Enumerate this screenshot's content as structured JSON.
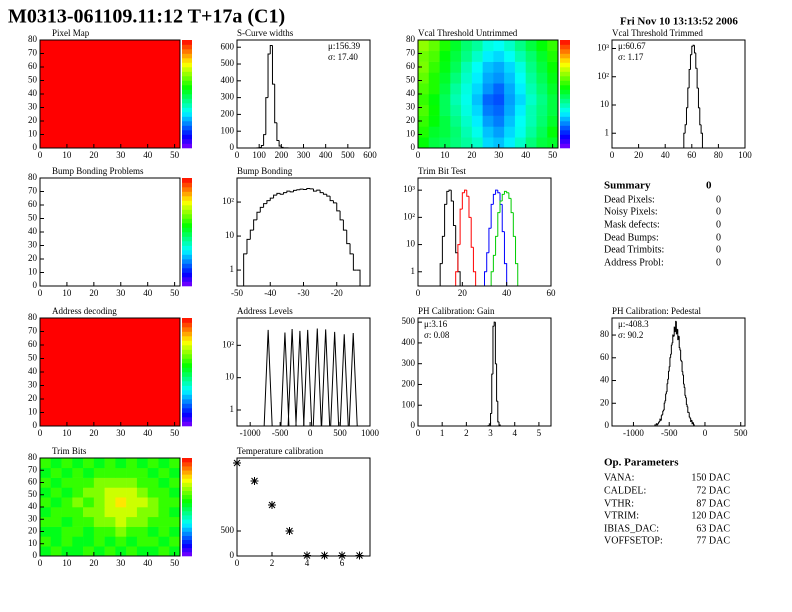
{
  "header": {
    "title": "M0313-061109.11:12 T+17a (C1)",
    "date": "Fri Nov 10 13:13:52 2006"
  },
  "chart_data": [
    {
      "type": "heatmap",
      "title": "Pixel Map",
      "xlim": [
        0,
        52
      ],
      "ylim": [
        0,
        80
      ],
      "xticks": [
        0,
        10,
        20,
        30,
        40,
        50
      ],
      "yticks": [
        0,
        10,
        20,
        30,
        40,
        50,
        60,
        70,
        80
      ],
      "zlim": [
        0,
        10
      ],
      "z": [
        [
          10,
          10
        ],
        [
          10,
          10
        ]
      ]
    },
    {
      "type": "hist",
      "title": "S-Curve widths",
      "stats": [
        "μ:156.39",
        "σ: 17.40"
      ],
      "color": "#000000",
      "xlim": [
        0,
        600
      ],
      "ylim": [
        0,
        643
      ],
      "xticks": [
        0,
        100,
        200,
        300,
        400,
        500,
        600
      ],
      "yticks": [
        0,
        100,
        200,
        300,
        400,
        500,
        600
      ],
      "bins": [
        90,
        100,
        110,
        120,
        130,
        140,
        150,
        160,
        170,
        180,
        190,
        200,
        210,
        220,
        230
      ],
      "counts": [
        1,
        3,
        15,
        80,
        300,
        560,
        610,
        380,
        150,
        45,
        12,
        4,
        1,
        1
      ]
    },
    {
      "type": "heatmap",
      "title": "Vcal Threshold Untrimmed",
      "xlim": [
        0,
        52
      ],
      "ylim": [
        0,
        80
      ],
      "xticks": [
        0,
        10,
        20,
        30,
        40,
        50
      ],
      "yticks": [
        0,
        10,
        20,
        30,
        40,
        50,
        60,
        70,
        80
      ],
      "zlim": [
        0,
        100
      ],
      "z": [
        [
          55,
          50,
          48,
          45,
          42,
          38,
          30,
          28,
          32,
          38,
          45,
          50,
          52
        ],
        [
          58,
          52,
          50,
          46,
          40,
          35,
          28,
          25,
          30,
          35,
          42,
          48,
          55
        ],
        [
          60,
          55,
          50,
          44,
          38,
          32,
          25,
          22,
          28,
          34,
          40,
          46,
          52
        ],
        [
          62,
          56,
          48,
          42,
          36,
          30,
          22,
          20,
          26,
          32,
          40,
          45,
          50
        ],
        [
          60,
          55,
          48,
          40,
          35,
          28,
          20,
          18,
          25,
          30,
          38,
          44,
          50
        ],
        [
          62,
          58,
          50,
          42,
          36,
          30,
          24,
          20,
          26,
          32,
          40,
          46,
          52
        ],
        [
          64,
          58,
          52,
          45,
          38,
          32,
          26,
          24,
          28,
          34,
          42,
          48,
          54
        ],
        [
          66,
          60,
          54,
          48,
          40,
          34,
          28,
          26,
          30,
          36,
          44,
          50,
          56
        ],
        [
          65,
          62,
          55,
          50,
          44,
          38,
          32,
          30,
          34,
          40,
          46,
          52,
          58
        ],
        [
          68,
          64,
          58,
          52,
          46,
          42,
          36,
          34,
          38,
          44,
          50,
          55,
          60
        ]
      ]
    },
    {
      "type": "hist",
      "title": "Vcal Threshold Trimmed",
      "stats": [
        "μ:60.67",
        "σ: 1.17"
      ],
      "color": "#000000",
      "log_y": true,
      "xlim": [
        0,
        100
      ],
      "ylim": [
        0.3,
        2000
      ],
      "xticks": [
        0,
        20,
        40,
        60,
        80,
        100
      ],
      "yticks": [
        1,
        10,
        {
          "value": 100,
          "label": "10²"
        },
        {
          "value": 1000,
          "label": "10³"
        }
      ],
      "bins": [
        54,
        55,
        56,
        57,
        58,
        59,
        60,
        61,
        62,
        63,
        64,
        65,
        66,
        67,
        68
      ],
      "counts": [
        1,
        2,
        8,
        40,
        180,
        600,
        1200,
        1300,
        700,
        200,
        40,
        8,
        2,
        1
      ]
    },
    {
      "type": "heatmap",
      "title": "Bump Bonding Problems",
      "xlim": [
        0,
        52
      ],
      "ylim": [
        0,
        80
      ],
      "xticks": [
        0,
        10,
        20,
        30,
        40,
        50
      ],
      "yticks": [
        0,
        10,
        20,
        30,
        40,
        50,
        60,
        70,
        80
      ],
      "zlim": [
        0,
        10
      ],
      "z": []
    },
    {
      "type": "hist",
      "title": "Bump Bonding",
      "color": "#000000",
      "log_y": true,
      "xlim": [
        -50,
        -10
      ],
      "ylim": [
        0.34,
        510
      ],
      "xticks": [
        -50,
        -40,
        -30,
        -20
      ],
      "yticks": [
        1,
        10,
        {
          "value": 100,
          "label": "10²"
        }
      ],
      "bins": [
        -48,
        -47,
        -46,
        -45,
        -44,
        -43,
        -42,
        -41,
        -40,
        -39,
        -38,
        -37,
        -36,
        -35,
        -34,
        -33,
        -32,
        -31,
        -30,
        -29,
        -28,
        -27,
        -26,
        -25,
        -24,
        -23,
        -22,
        -21,
        -20,
        -19,
        -18,
        -17,
        -16,
        -15,
        -14,
        -13
      ],
      "counts": [
        3,
        8,
        15,
        30,
        50,
        70,
        90,
        110,
        130,
        160,
        180,
        170,
        190,
        210,
        200,
        220,
        230,
        240,
        235,
        250,
        245,
        210,
        225,
        190,
        170,
        150,
        110,
        95,
        55,
        30,
        15,
        6,
        3,
        1,
        1
      ]
    },
    {
      "type": "hist",
      "title": "Trim Bit Test",
      "log_y": true,
      "xlim": [
        0,
        60
      ],
      "ylim": [
        0.3,
        2800
      ],
      "xticks": [
        0,
        20,
        40,
        60
      ],
      "yticks": [
        1,
        10,
        {
          "value": 100,
          "label": "10²"
        },
        {
          "value": 1000,
          "label": "10³"
        }
      ],
      "series": [
        {
          "color": "#000000",
          "bins": [
            10,
            11,
            12,
            13,
            14,
            15,
            16,
            17,
            18,
            19
          ],
          "counts": [
            2,
            20,
            300,
            900,
            1000,
            400,
            50,
            5,
            1
          ]
        },
        {
          "color": "#ff0000",
          "bins": [
            17,
            18,
            19,
            20,
            21,
            22,
            23,
            24,
            25,
            26
          ],
          "counts": [
            1,
            10,
            200,
            800,
            1000,
            600,
            100,
            8,
            1
          ]
        },
        {
          "color": "#0000ff",
          "bins": [
            30,
            31,
            32,
            33,
            34,
            35,
            36,
            37,
            38,
            39,
            40
          ],
          "counts": [
            1,
            5,
            40,
            300,
            700,
            1000,
            800,
            300,
            30,
            2
          ]
        },
        {
          "color": "#00cc00",
          "bins": [
            33,
            34,
            35,
            36,
            37,
            38,
            39,
            40,
            41,
            42,
            43,
            44,
            45
          ],
          "counts": [
            1,
            4,
            20,
            150,
            400,
            700,
            900,
            800,
            500,
            150,
            20,
            2
          ]
        }
      ]
    },
    {
      "type": "heatmap",
      "title": "Address decoding",
      "xlim": [
        0,
        52
      ],
      "ylim": [
        0,
        80
      ],
      "xticks": [
        0,
        10,
        20,
        30,
        40,
        50
      ],
      "yticks": [
        0,
        10,
        20,
        30,
        40,
        50,
        60,
        70,
        80
      ],
      "zlim": [
        0,
        10
      ],
      "z": [
        [
          10,
          10
        ],
        [
          10,
          10
        ]
      ]
    },
    {
      "type": "spikes",
      "title": "Address Levels",
      "color": "#000000",
      "log_y": true,
      "xlim": [
        -1220,
        1000
      ],
      "ylim": [
        0.32,
        700
      ],
      "xticks": [
        -1000,
        -500,
        0,
        500,
        1000
      ],
      "yticks": [
        1,
        10,
        {
          "value": 100,
          "label": "10²"
        }
      ],
      "x": [
        -700,
        -420,
        -300,
        -170,
        -40,
        120,
        260,
        410,
        570,
        720
      ],
      "values": [
        300,
        250,
        320,
        280,
        300,
        330,
        310,
        260,
        220,
        240
      ]
    },
    {
      "type": "hist",
      "title": "PH Calibration: Gain",
      "stats": [
        "μ:3.16",
        "σ: 0.08"
      ],
      "color": "#000000",
      "xlim": [
        0,
        5.5
      ],
      "ylim": [
        0,
        520
      ],
      "xticks": [
        0,
        1,
        2,
        3,
        4,
        5
      ],
      "yticks": [
        0,
        100,
        200,
        300,
        400,
        500
      ],
      "bins": [
        2.9,
        2.95,
        3,
        3.05,
        3.1,
        3.15,
        3.2,
        3.25,
        3.3,
        3.35,
        3.4
      ],
      "counts": [
        2,
        10,
        60,
        250,
        480,
        500,
        300,
        120,
        20,
        5
      ]
    },
    {
      "type": "hist",
      "title": "PH Calibration: Pedestal",
      "stats": [
        "μ:-408.3",
        "σ: 90.2"
      ],
      "color": "#000000",
      "xlim": [
        -1300,
        560
      ],
      "ylim": [
        0,
        95
      ],
      "xticks": [
        -1000,
        -500,
        0,
        500
      ],
      "yticks": [
        0,
        20,
        40,
        60,
        80
      ],
      "bins": [
        -700,
        -690,
        -680,
        -670,
        -660,
        -650,
        -640,
        -630,
        -620,
        -610,
        -600,
        -590,
        -580,
        -570,
        -560,
        -550,
        -540,
        -530,
        -520,
        -510,
        -500,
        -490,
        -480,
        -470,
        -460,
        -450,
        -440,
        -430,
        -420,
        -410,
        -400,
        -390,
        -380,
        -370,
        -360,
        -350,
        -340,
        -330,
        -320,
        -310,
        -300,
        -290,
        -280,
        -270,
        -260,
        -250,
        -240,
        -230,
        -220,
        -210,
        -200,
        -190,
        -180,
        -170,
        -160,
        -150
      ],
      "counts": [
        1,
        1,
        2,
        1,
        2,
        3,
        4,
        6,
        5,
        9,
        10,
        13,
        14,
        20,
        22,
        28,
        30,
        37,
        41,
        48,
        52,
        60,
        63,
        71,
        73,
        80,
        79,
        87,
        83,
        92,
        81,
        85,
        76,
        79,
        69,
        67,
        58,
        57,
        48,
        45,
        37,
        34,
        27,
        25,
        19,
        17,
        12,
        12,
        8,
        7,
        4,
        5,
        2,
        3,
        1
      ]
    },
    {
      "type": "heatmap",
      "title": "Trim Bits",
      "xlim": [
        0,
        52
      ],
      "ylim": [
        0,
        80
      ],
      "xticks": [
        0,
        10,
        20,
        30,
        40,
        50
      ],
      "yticks": [
        0,
        10,
        20,
        30,
        40,
        50,
        60,
        70,
        80
      ],
      "zlim": [
        0,
        15
      ],
      "z": [
        [
          8,
          9,
          8,
          8,
          9,
          8,
          9,
          8,
          9,
          8,
          8,
          9,
          8
        ],
        [
          9,
          8,
          9,
          8,
          8,
          9,
          8,
          9,
          8,
          9,
          9,
          8,
          9
        ],
        [
          8,
          8,
          9,
          9,
          8,
          9,
          9,
          10,
          9,
          9,
          8,
          9,
          8
        ],
        [
          9,
          9,
          8,
          9,
          9,
          10,
          10,
          11,
          10,
          10,
          9,
          9,
          9
        ],
        [
          8,
          9,
          9,
          9,
          10,
          10,
          11,
          11,
          11,
          10,
          10,
          9,
          8
        ],
        [
          9,
          8,
          9,
          10,
          9,
          10,
          11,
          12,
          11,
          11,
          10,
          9,
          9
        ],
        [
          8,
          9,
          8,
          9,
          10,
          10,
          11,
          11,
          11,
          10,
          9,
          9,
          8
        ],
        [
          9,
          8,
          9,
          9,
          9,
          10,
          10,
          10,
          10,
          9,
          9,
          8,
          9
        ],
        [
          8,
          9,
          8,
          9,
          8,
          9,
          9,
          9,
          9,
          9,
          8,
          9,
          8
        ],
        [
          9,
          8,
          9,
          8,
          9,
          8,
          9,
          8,
          9,
          8,
          9,
          8,
          9
        ]
      ]
    },
    {
      "type": "scatter",
      "title": "Temperature calibration",
      "color": "#000000",
      "xlim": [
        0,
        7.6
      ],
      "ylim": [
        0,
        1960
      ],
      "xticks": [
        0,
        2,
        4,
        6
      ],
      "yticks": [
        0,
        500
      ],
      "x": [
        0,
        1,
        2,
        3,
        4,
        5,
        6,
        7
      ],
      "values": [
        1860,
        1500,
        1020,
        500,
        10,
        10,
        10,
        10
      ]
    }
  ],
  "summary": {
    "title": "Summary",
    "total": 0,
    "rows": [
      [
        "Dead Pixels:",
        0
      ],
      [
        "Noisy Pixels:",
        0
      ],
      [
        "Mask defects:",
        0
      ],
      [
        "Dead Bumps:",
        0
      ],
      [
        "Dead Trimbits:",
        0
      ],
      [
        "Address Probl:",
        0
      ]
    ]
  },
  "op_parameters": {
    "title": "Op. Parameters",
    "rows": [
      [
        "VANA:",
        "150 DAC"
      ],
      [
        "CALDEL:",
        "72 DAC"
      ],
      [
        "VTHR:",
        "87 DAC"
      ],
      [
        "VTRIM:",
        "120 DAC"
      ],
      [
        "IBIAS_DAC:",
        "63 DAC"
      ],
      [
        "VOFFSETOP:",
        "77 DAC"
      ]
    ]
  }
}
